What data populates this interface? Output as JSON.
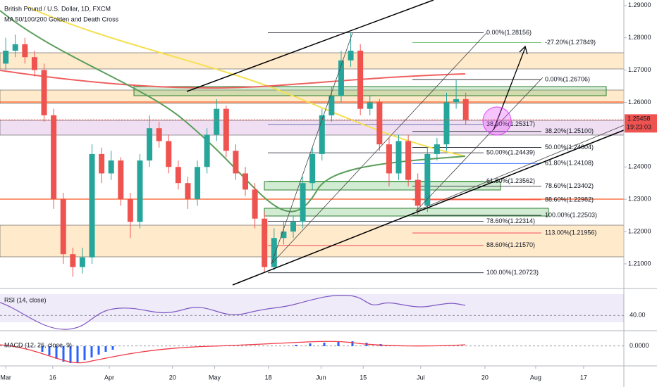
{
  "chart_data": {
    "type": "candlestick",
    "title": "British Pound / U.S. Dollar, 1D, FXCM",
    "subtitle": "MA 50/100/200 Golden and Death Cross",
    "open": [
      1.272,
      1.276,
      1.278,
      1.274,
      1.27,
      1.256,
      1.23,
      1.213,
      1.209,
      1.212,
      1.244,
      1.238,
      1.242,
      1.23,
      1.223,
      1.242,
      1.252,
      1.248,
      1.24,
      1.235,
      1.23,
      1.24,
      1.25,
      1.258,
      1.245,
      1.238,
      1.233,
      1.224,
      1.209,
      1.218,
      1.22,
      1.223,
      1.235,
      1.244,
      1.256,
      1.262,
      1.273,
      1.276,
      1.258,
      1.26,
      1.247,
      1.238,
      1.248,
      1.236,
      1.228,
      1.244,
      1.247,
      1.26,
      1.261
    ],
    "high": [
      1.28,
      1.281,
      1.28,
      1.276,
      1.272,
      1.258,
      1.232,
      1.215,
      1.215,
      1.247,
      1.246,
      1.245,
      1.243,
      1.232,
      1.244,
      1.256,
      1.254,
      1.25,
      1.242,
      1.237,
      1.242,
      1.252,
      1.261,
      1.259,
      1.247,
      1.24,
      1.235,
      1.226,
      1.221,
      1.223,
      1.225,
      1.237,
      1.246,
      1.258,
      1.265,
      1.276,
      1.2816,
      1.278,
      1.262,
      1.261,
      1.249,
      1.25,
      1.25,
      1.238,
      1.246,
      1.249,
      1.263,
      1.2671,
      1.263
    ],
    "low": [
      1.27,
      1.274,
      1.272,
      1.268,
      1.254,
      1.227,
      1.21,
      1.206,
      1.207,
      1.21,
      1.235,
      1.236,
      1.228,
      1.218,
      1.221,
      1.24,
      1.246,
      1.238,
      1.233,
      1.227,
      1.228,
      1.238,
      1.248,
      1.243,
      1.236,
      1.231,
      1.221,
      1.2072,
      1.208,
      1.216,
      1.218,
      1.221,
      1.233,
      1.242,
      1.254,
      1.26,
      1.271,
      1.256,
      1.256,
      1.245,
      1.234,
      1.236,
      1.234,
      1.225,
      1.226,
      1.242,
      1.245,
      1.258,
      1.253
    ],
    "close": [
      1.276,
      1.278,
      1.274,
      1.27,
      1.256,
      1.23,
      1.213,
      1.209,
      1.212,
      1.244,
      1.238,
      1.242,
      1.23,
      1.223,
      1.242,
      1.252,
      1.248,
      1.24,
      1.235,
      1.23,
      1.24,
      1.25,
      1.258,
      1.245,
      1.238,
      1.233,
      1.224,
      1.209,
      1.218,
      1.22,
      1.223,
      1.235,
      1.244,
      1.256,
      1.262,
      1.273,
      1.276,
      1.258,
      1.26,
      1.247,
      1.238,
      1.248,
      1.236,
      1.228,
      1.244,
      1.247,
      1.26,
      1.261,
      1.2546
    ],
    "up_color": "#26a69a",
    "down_color": "#ef5350",
    "xlim": [
      -0.6,
      64.5
    ],
    "xticks": [
      {
        "value": 0,
        "label": "Mar"
      },
      {
        "value": 4.9,
        "label": "16"
      },
      {
        "value": 10.8,
        "label": "Apr"
      },
      {
        "value": 17.4,
        "label": "20"
      },
      {
        "value": 21.8,
        "label": "May"
      },
      {
        "value": 27.4,
        "label": "18"
      },
      {
        "value": 32.9,
        "label": "Jun"
      },
      {
        "value": 37.3,
        "label": "15"
      },
      {
        "value": 43.3,
        "label": "Jul"
      },
      {
        "value": 50,
        "label": "20"
      },
      {
        "value": 55.3,
        "label": "Aug"
      },
      {
        "value": 60.3,
        "label": "17"
      }
    ],
    "ylim": [
      1.2028,
      1.2917
    ],
    "yticks": [
      {
        "value": 1.29,
        "label": "1.29000"
      },
      {
        "value": 1.28,
        "label": "1.28000"
      },
      {
        "value": 1.27,
        "label": "1.27000"
      },
      {
        "value": 1.26,
        "label": "1.26000"
      },
      {
        "value": 1.24,
        "label": "1.24000"
      },
      {
        "value": 1.23,
        "label": "1.23000"
      },
      {
        "value": 1.22,
        "label": "1.22000"
      },
      {
        "value": 1.21,
        "label": "1.21000"
      }
    ],
    "last_price": {
      "value": 1.25458,
      "label": "1.25458"
    },
    "countdown": "19:23:03",
    "fib_levels": [
      {
        "label": "0.00%(1.28156)",
        "value": 1.28156,
        "color": "#131722"
      },
      {
        "label": "-27.20%(1.27849)",
        "value": 1.27849,
        "color": "#4caf50"
      },
      {
        "label": "0.00%(1.26706)",
        "value": 1.26706,
        "color": "#131722"
      },
      {
        "label": "38.20%(1.25317)",
        "value": 1.25317,
        "color": "#5b6ab0"
      },
      {
        "label": "38.20%(1.25100)",
        "value": 1.251,
        "color": "#131722"
      },
      {
        "label": "50.00%(1.24604)",
        "value": 1.24604,
        "color": "#131722"
      },
      {
        "label": "50.00%(1.24439)",
        "value": 1.24439,
        "color": "#131722"
      },
      {
        "label": "61.80%(1.24108)",
        "value": 1.24108,
        "color": "#2962ff"
      },
      {
        "label": "61.80%(1.23562)",
        "value": 1.23562,
        "color": "#4caf50"
      },
      {
        "label": "78.60%(1.23402)",
        "value": 1.23402,
        "color": "#131722"
      },
      {
        "label": "88.60%(1.22982)",
        "value": 1.22982,
        "color": "#f23645"
      },
      {
        "label": "100.00%(1.22503)",
        "value": 1.22503,
        "color": "#131722"
      },
      {
        "label": "78.60%(1.22314)",
        "value": 1.22314,
        "color": "#131722"
      },
      {
        "label": "113.00%(1.21956)",
        "value": 1.21956,
        "color": "#f23645"
      },
      {
        "label": "88.60%(1.21570)",
        "value": 1.2157,
        "color": "#f23645"
      },
      {
        "label": "100.00%(1.20723)",
        "value": 1.20723,
        "color": "#131722"
      }
    ],
    "rsi": {
      "title": "RSI (14, close)",
      "ylim": [
        20,
        80
      ],
      "level": {
        "value": 40,
        "label": "40.00"
      }
    },
    "macd": {
      "title": "MACD (12, 26, close, 9)",
      "ylim": [
        -0.005,
        0.0025
      ],
      "level": {
        "value": 0,
        "label": "0.0000"
      }
    }
  }
}
